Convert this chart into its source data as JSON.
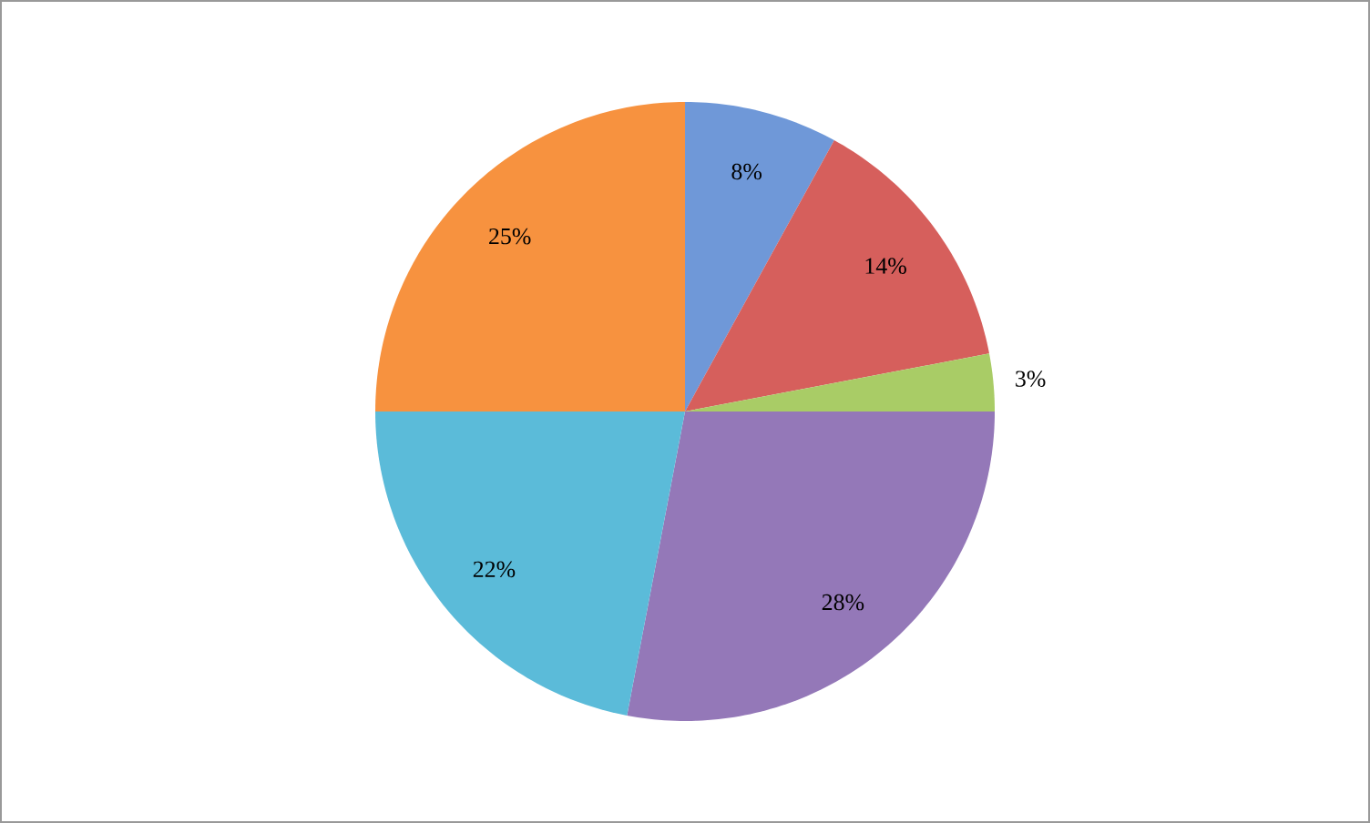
{
  "chart_data": {
    "type": "pie",
    "categories": [
      null,
      null,
      null,
      null,
      null,
      null
    ],
    "values": [
      8,
      14,
      3,
      28,
      22,
      25
    ],
    "value_labels": [
      "8%",
      "14%",
      "3%",
      "28%",
      "22%",
      "25%"
    ],
    "colors": [
      "#6f98d8",
      "#d65f5c",
      "#a9cc66",
      "#9478b8",
      "#5bbbd9",
      "#f7923f"
    ]
  }
}
